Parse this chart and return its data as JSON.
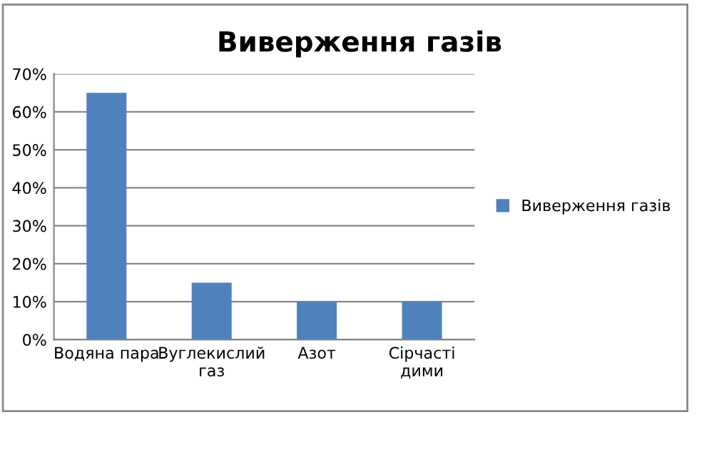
{
  "chart_data": {
    "type": "bar",
    "title": "Виверження газів",
    "categories": [
      "Водяна пара",
      "Вуглекислий газ",
      "Азот",
      "Сірчасті дими"
    ],
    "series": [
      {
        "name": "Виверження газів",
        "color": "#4f81bd",
        "values": [
          65,
          15,
          10,
          10
        ]
      }
    ],
    "ylim": [
      0,
      70
    ],
    "yticks": [
      {
        "value": 0,
        "label": "0%"
      },
      {
        "value": 10,
        "label": "10%"
      },
      {
        "value": 20,
        "label": "20%"
      },
      {
        "value": 30,
        "label": "30%"
      },
      {
        "value": 40,
        "label": "40%"
      },
      {
        "value": 50,
        "label": "50%"
      },
      {
        "value": 60,
        "label": "60%"
      },
      {
        "value": 70,
        "label": "70%"
      }
    ],
    "grid": "y",
    "legend": "right"
  }
}
